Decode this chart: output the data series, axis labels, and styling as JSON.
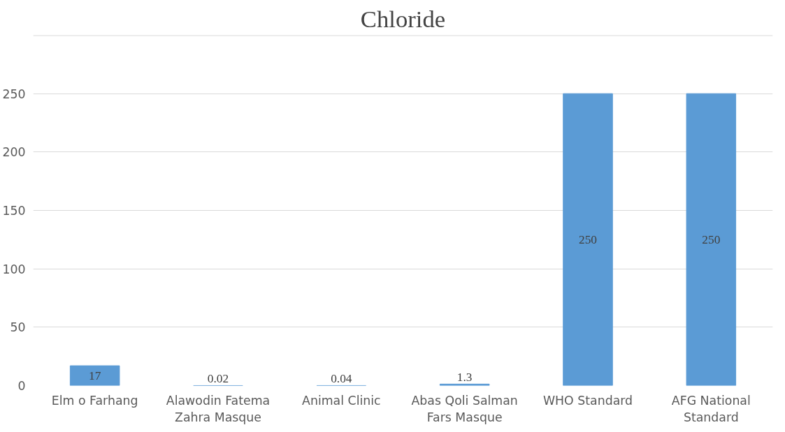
{
  "chart_data": {
    "type": "bar",
    "title": "Chloride",
    "categories": [
      "Elm o Farhang",
      "Alawodin Fatema Zahra Masque",
      "Animal Clinic",
      "Abas Qoli Salman Fars Masque",
      "WHO Standard",
      "AFG National Standard"
    ],
    "values": [
      17,
      0.02,
      0.04,
      1.3,
      250,
      250
    ],
    "color": "#5b9bd5",
    "ylim": [
      0,
      300
    ],
    "yticks": [
      0,
      50,
      100,
      150,
      200,
      250
    ],
    "grid": "y",
    "data_labels": true
  }
}
